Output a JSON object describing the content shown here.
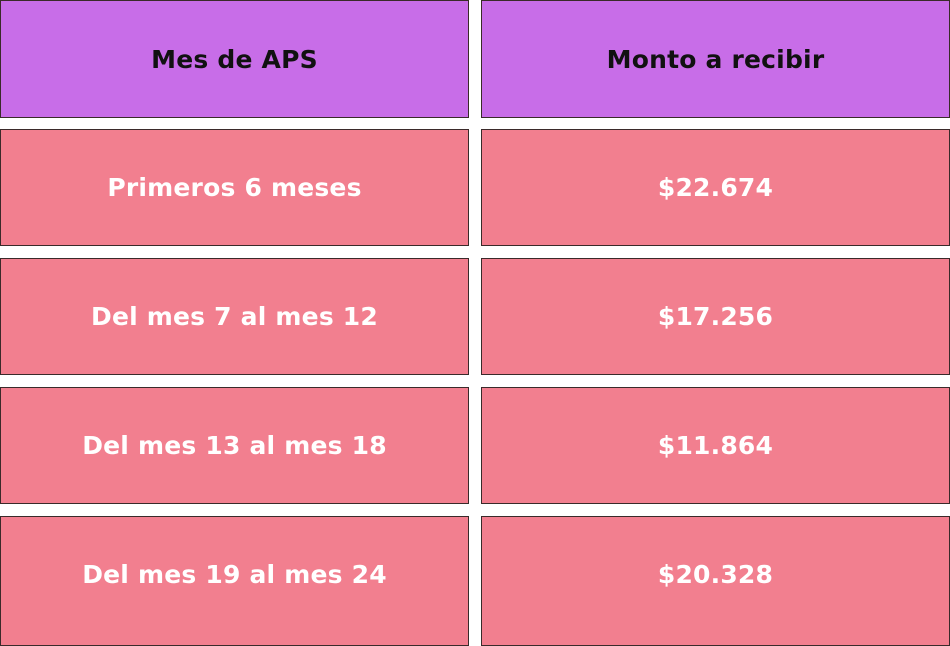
{
  "table": {
    "headers": [
      "Mes de APS",
      "Monto a recibir"
    ],
    "rows": [
      [
        "Primeros 6 meses",
        "$22.674"
      ],
      [
        "Del mes 7 al mes 12",
        "$17.256"
      ],
      [
        "Del mes 13 al mes 18",
        "$11.864"
      ],
      [
        "Del mes 19 al mes 24",
        "$20.328"
      ]
    ]
  },
  "colors": {
    "header_bg": "#c86de8",
    "row_bg": "#f27f8f",
    "header_text": "#111111",
    "row_text": "#ffffff"
  }
}
